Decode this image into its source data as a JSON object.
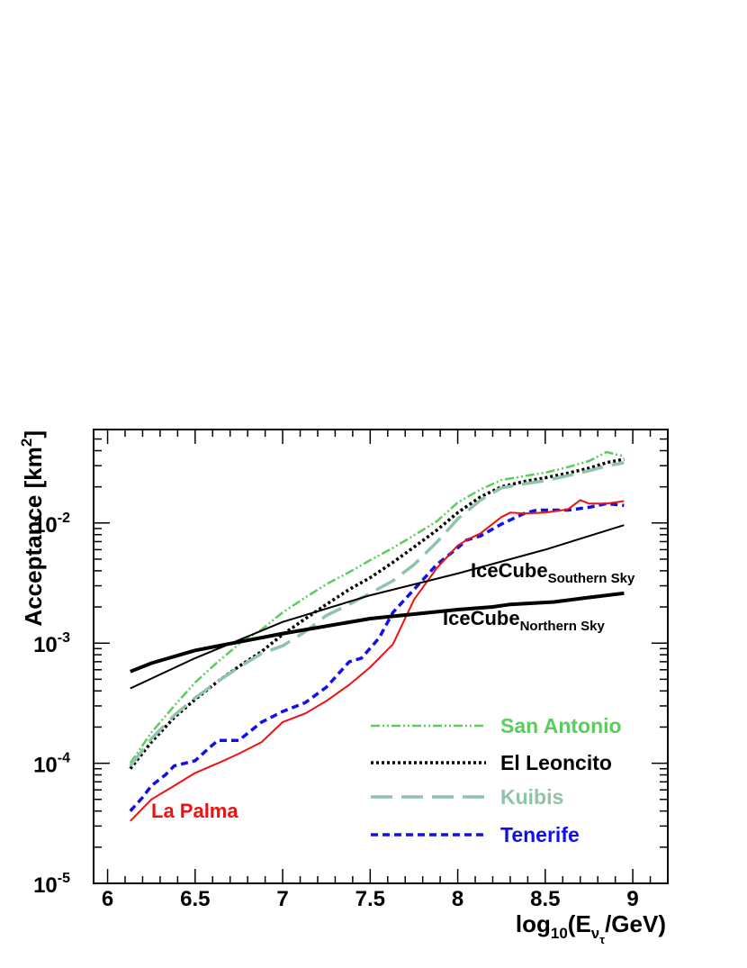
{
  "chart_data": {
    "type": "line",
    "title": "",
    "xlabel": {
      "main": "log",
      "sub1": "10",
      "paren": "(E",
      "sub2": "ν",
      "sub3": "τ",
      "tail": "/GeV)"
    },
    "ylabel": {
      "main": "Acceptance [km",
      "sup": "2",
      "tail": "]"
    },
    "x_scale": "linear",
    "y_scale": "log",
    "xlim": [
      5.92,
      9.2
    ],
    "ylim": [
      1e-05,
      0.06
    ],
    "x_ticks": [
      {
        "value": 6,
        "label": "6"
      },
      {
        "value": 6.5,
        "label": "6.5"
      },
      {
        "value": 7,
        "label": "7"
      },
      {
        "value": 7.5,
        "label": "7.5"
      },
      {
        "value": 8,
        "label": "8"
      },
      {
        "value": 8.5,
        "label": "8.5"
      },
      {
        "value": 9,
        "label": "9"
      }
    ],
    "y_ticks": [
      {
        "value": 1e-05,
        "base": "10",
        "exp": "-5"
      },
      {
        "value": 0.0001,
        "base": "10",
        "exp": "-4"
      },
      {
        "value": 0.001,
        "base": "10",
        "exp": "-3"
      },
      {
        "value": 0.01,
        "base": "10",
        "exp": "-2"
      }
    ],
    "grid": false,
    "legend_position": "bottom-right",
    "series": [
      {
        "name": "San Antonio",
        "color": "#5ccc5c",
        "style": "dash-dot-dot",
        "x": [
          6.13,
          6.25,
          6.38,
          6.5,
          6.63,
          6.75,
          6.88,
          7.0,
          7.13,
          7.25,
          7.38,
          7.5,
          7.63,
          7.75,
          7.88,
          8.0,
          8.13,
          8.25,
          8.38,
          8.5,
          8.63,
          8.75,
          8.85,
          8.95
        ],
        "y": [
          0.0001,
          0.00018,
          0.0003,
          0.00047,
          0.0007,
          0.00098,
          0.0013,
          0.0018,
          0.0024,
          0.0031,
          0.0039,
          0.0049,
          0.0062,
          0.0079,
          0.0103,
          0.0148,
          0.019,
          0.0228,
          0.0246,
          0.0262,
          0.0292,
          0.0328,
          0.039,
          0.036
        ]
      },
      {
        "name": "El Leoncito",
        "color": "#000000",
        "style": "dotted",
        "x": [
          6.13,
          6.25,
          6.38,
          6.5,
          6.63,
          6.75,
          6.88,
          7.0,
          7.13,
          7.25,
          7.38,
          7.5,
          7.63,
          7.75,
          7.88,
          8.0,
          8.13,
          8.25,
          8.38,
          8.5,
          8.63,
          8.75,
          8.85,
          8.95
        ],
        "y": [
          9e-05,
          0.00015,
          0.00024,
          0.00034,
          0.00048,
          0.00064,
          0.00085,
          0.00118,
          0.0016,
          0.0021,
          0.0028,
          0.0035,
          0.0047,
          0.0063,
          0.0087,
          0.0122,
          0.0165,
          0.02,
          0.0222,
          0.0238,
          0.026,
          0.0286,
          0.0318,
          0.034
        ]
      },
      {
        "name": "Kuibis",
        "color": "#8fc4aa",
        "style": "long-dash",
        "x": [
          6.13,
          6.25,
          6.38,
          6.5,
          6.63,
          6.75,
          6.88,
          7.0,
          7.13,
          7.25,
          7.38,
          7.5,
          7.63,
          7.75,
          7.88,
          8.0,
          8.13,
          8.25,
          8.38,
          8.5,
          8.63,
          8.75,
          8.85,
          8.95
        ],
        "y": [
          9.5e-05,
          0.00016,
          0.00025,
          0.00035,
          0.00048,
          0.00063,
          0.00082,
          0.00095,
          0.00125,
          0.0017,
          0.0021,
          0.0026,
          0.0033,
          0.0045,
          0.0069,
          0.0108,
          0.0155,
          0.0196,
          0.0212,
          0.0225,
          0.0248,
          0.0272,
          0.0298,
          0.0318
        ]
      },
      {
        "name": "Tenerife",
        "color": "#1010ee",
        "style": "short-dash",
        "x": [
          6.13,
          6.2,
          6.25,
          6.33,
          6.38,
          6.5,
          6.57,
          6.63,
          6.75,
          6.88,
          7.0,
          7.13,
          7.25,
          7.38,
          7.45,
          7.55,
          7.63,
          7.75,
          7.88,
          8.0,
          8.05,
          8.13,
          8.25,
          8.38,
          8.45,
          8.5,
          8.63,
          8.75,
          8.85,
          8.95
        ],
        "y": [
          4e-05,
          5.2e-05,
          6.5e-05,
          8e-05,
          9.5e-05,
          0.000105,
          0.00013,
          0.000155,
          0.000155,
          0.00022,
          0.00027,
          0.00032,
          0.00043,
          0.0007,
          0.00075,
          0.0011,
          0.0018,
          0.0028,
          0.0045,
          0.0062,
          0.0072,
          0.0078,
          0.0098,
          0.012,
          0.0128,
          0.0128,
          0.0128,
          0.0135,
          0.0145,
          0.014
        ]
      },
      {
        "name": "La Palma",
        "color": "#ee1111",
        "style": "solid",
        "x": [
          6.13,
          6.25,
          6.38,
          6.5,
          6.63,
          6.75,
          6.88,
          7.0,
          7.13,
          7.25,
          7.38,
          7.5,
          7.63,
          7.75,
          7.88,
          8.0,
          8.05,
          8.13,
          8.25,
          8.3,
          8.38,
          8.5,
          8.63,
          8.7,
          8.75,
          8.85,
          8.95
        ],
        "y": [
          3.3e-05,
          5e-05,
          6.5e-05,
          8.3e-05,
          0.0001,
          0.00012,
          0.00015,
          0.00022,
          0.00026,
          0.00033,
          0.00045,
          0.00063,
          0.00098,
          0.0023,
          0.0042,
          0.0065,
          0.0072,
          0.0082,
          0.0112,
          0.0122,
          0.012,
          0.0122,
          0.013,
          0.0155,
          0.0145,
          0.0145,
          0.0152
        ]
      },
      {
        "name": "IceCube Southern Sky",
        "color": "#000000",
        "style": "solid-thin",
        "x": [
          6.13,
          6.5,
          7.0,
          7.5,
          8.0,
          8.5,
          8.95
        ],
        "y": [
          0.00042,
          0.00075,
          0.0015,
          0.0025,
          0.0038,
          0.006,
          0.0096
        ]
      },
      {
        "name": "IceCube Northern Sky",
        "color": "#000000",
        "style": "solid-thick",
        "x": [
          6.13,
          6.25,
          6.5,
          7.0,
          7.5,
          8.0,
          8.2,
          8.3,
          8.55,
          8.75,
          8.95
        ],
        "y": [
          0.00058,
          0.00068,
          0.00087,
          0.0012,
          0.0016,
          0.0019,
          0.002,
          0.0021,
          0.0022,
          0.0024,
          0.0026
        ]
      }
    ],
    "annotations": {
      "icecube_south": {
        "main": "IceCube",
        "sub": "Southern Sky"
      },
      "icecube_north": {
        "main": "IceCube",
        "sub": "Northern Sky"
      },
      "la_palma": {
        "text": "La Palma",
        "color": "#ee1111"
      }
    },
    "legend": [
      {
        "label": "San Antonio",
        "color": "#5ccc5c",
        "style": "dash-dot-dot"
      },
      {
        "label": "El Leoncito",
        "color": "#000000",
        "style": "dotted"
      },
      {
        "label": "Kuibis",
        "color": "#8fc4aa",
        "style": "long-dash"
      },
      {
        "label": "Tenerife",
        "color": "#1010ee",
        "style": "short-dash"
      }
    ]
  }
}
